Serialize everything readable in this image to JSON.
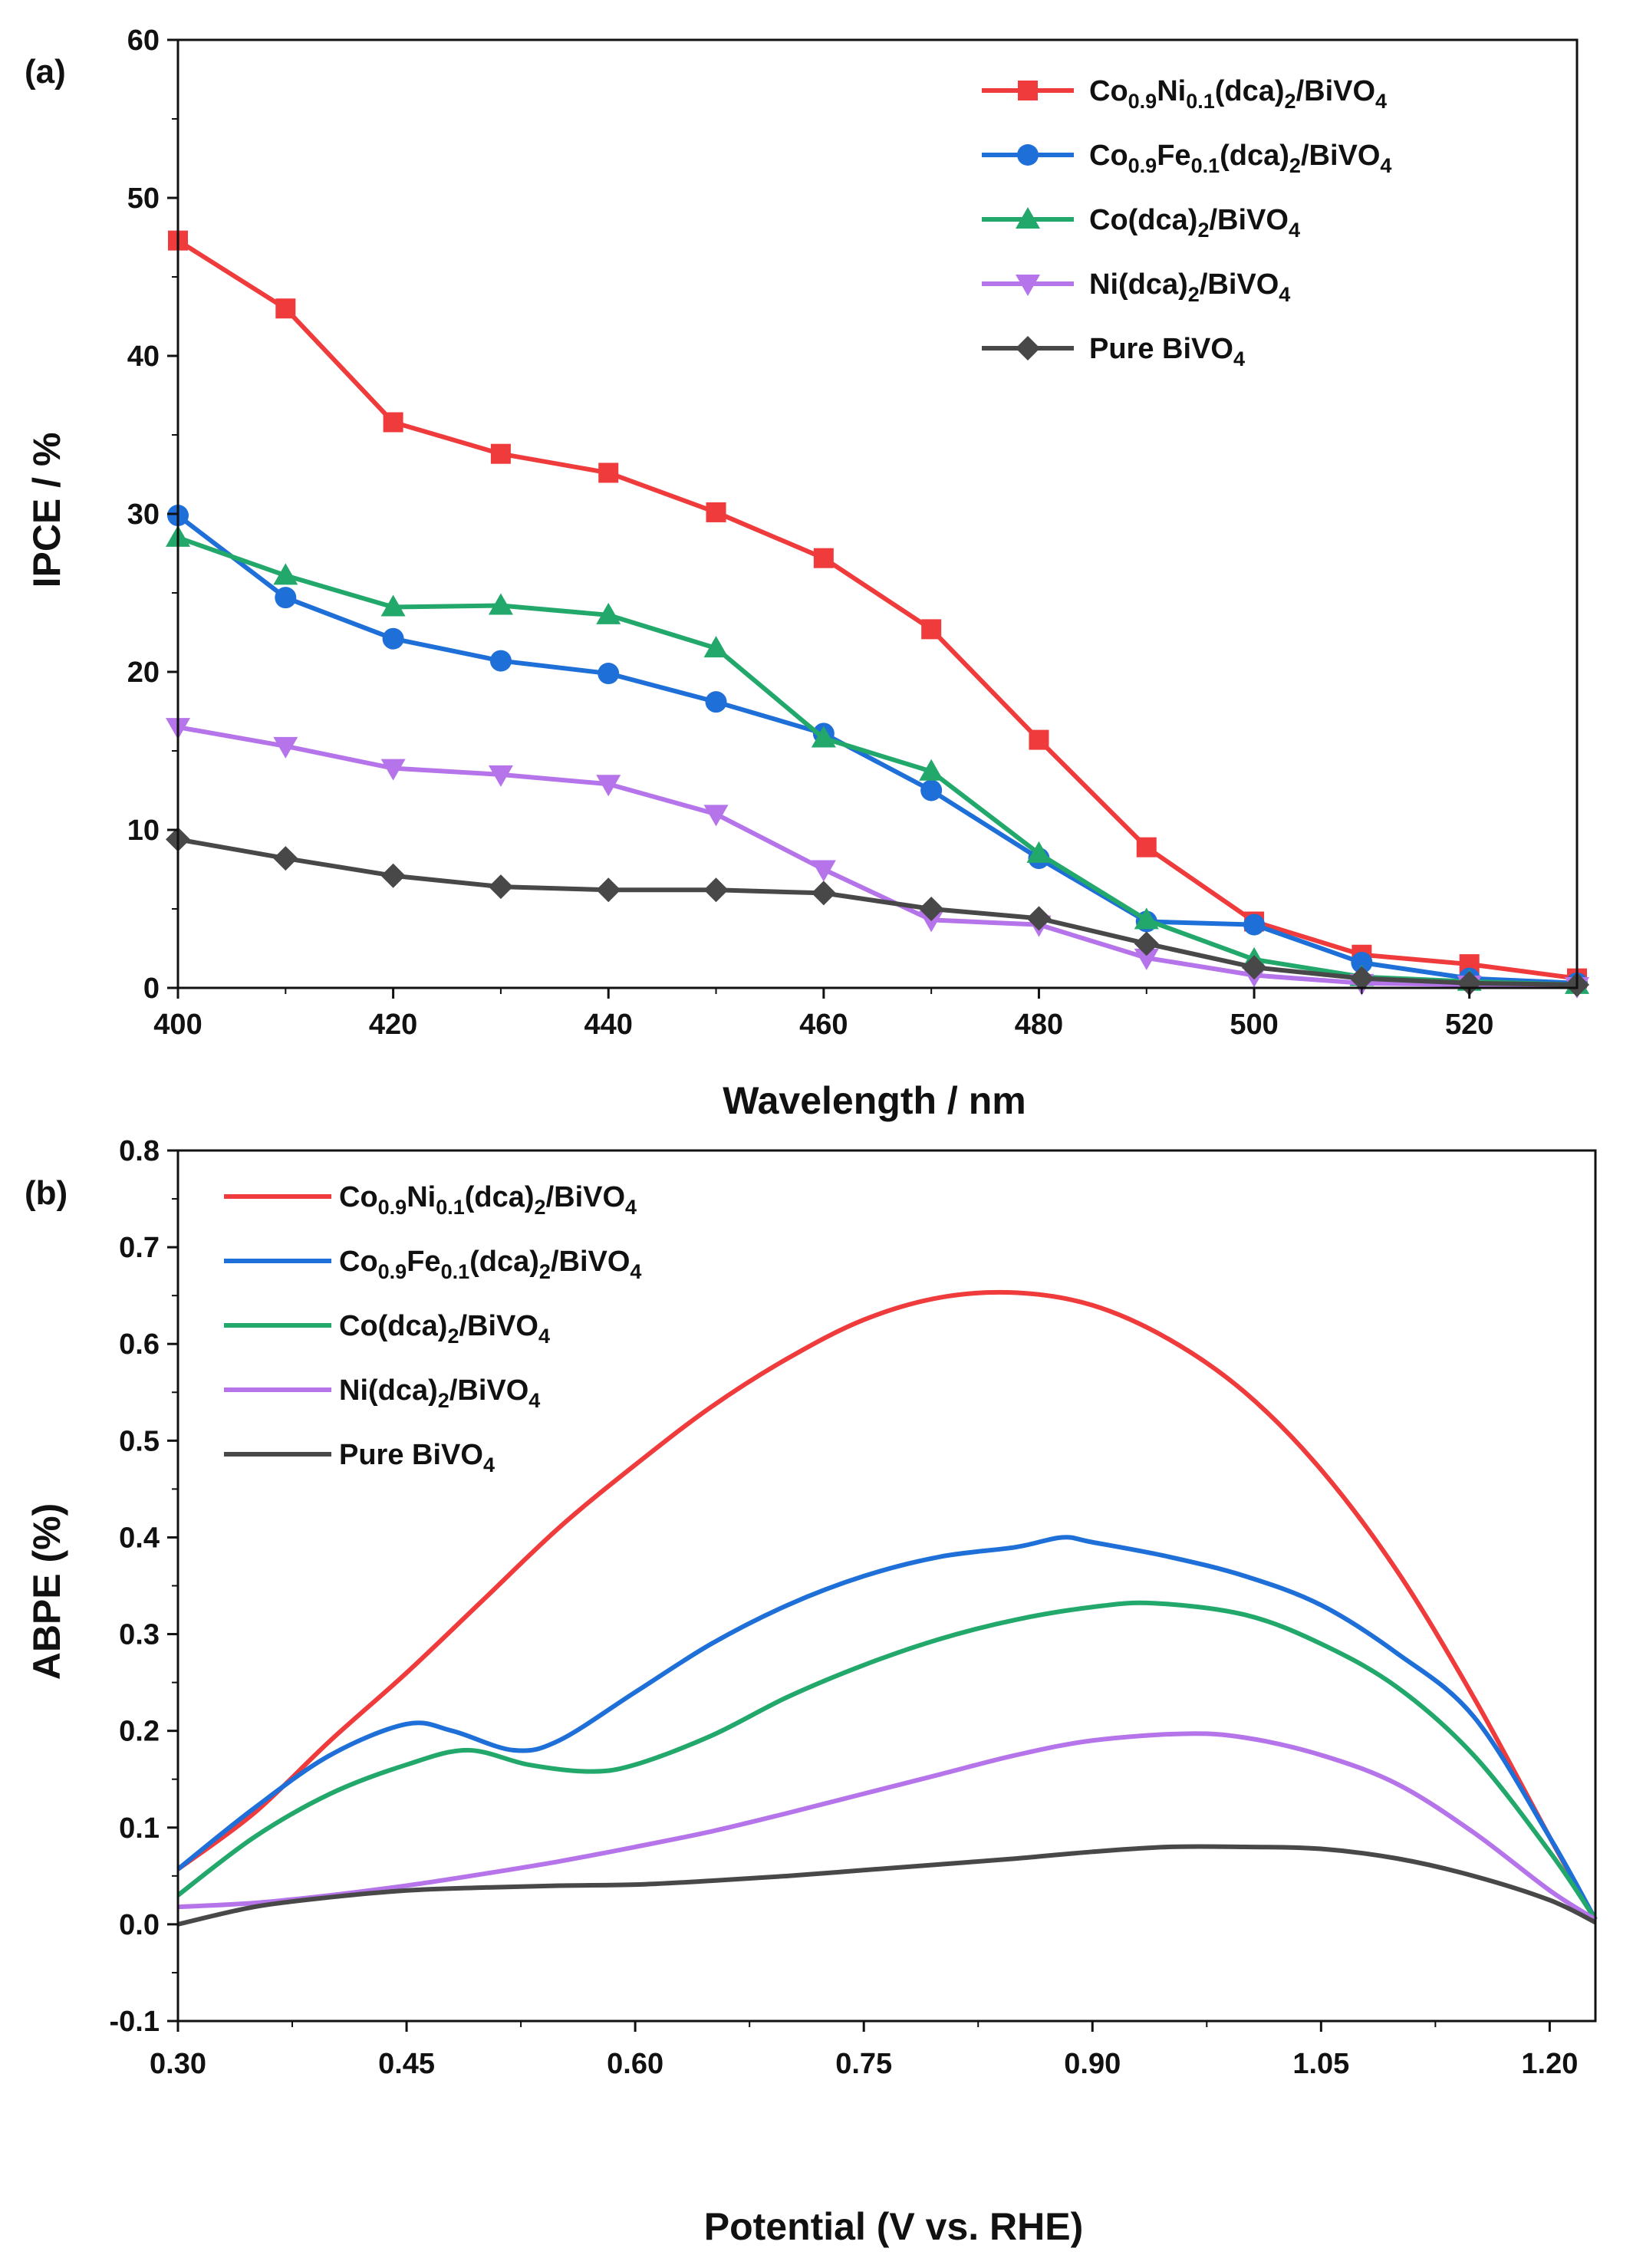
{
  "chart_data": [
    {
      "type": "line",
      "panel_label": "(a)",
      "xlabel": "Wavelength / nm",
      "ylabel": "IPCE / %",
      "xlim": [
        400,
        530
      ],
      "ylim": [
        0,
        60
      ],
      "xticks": [
        "400",
        "420",
        "440",
        "460",
        "480",
        "500",
        "520"
      ],
      "yticks": [
        "0",
        "10",
        "20",
        "30",
        "40",
        "50",
        "60"
      ],
      "legend_position": "top-right",
      "x": [
        400,
        410,
        420,
        430,
        440,
        450,
        460,
        470,
        480,
        490,
        500,
        510,
        520,
        530
      ],
      "series": [
        {
          "name": "Co0.9Ni0.1(dca)2/BiVO4",
          "legend": {
            "base": "Co",
            "sub1": "0.9",
            "mid": "Ni",
            "sub2": "0.1",
            "mid2": "(dca)",
            "sub3": "2",
            "end": "/BiVO",
            "sub4": "4"
          },
          "color": "#ef3b3b",
          "marker": "square",
          "values": [
            47.3,
            43.0,
            35.8,
            33.8,
            32.6,
            30.1,
            27.2,
            22.7,
            15.7,
            8.9,
            4.2,
            2.1,
            1.5,
            0.6
          ]
        },
        {
          "name": "Co0.9Fe0.1(dca)2/BiVO4",
          "legend": {
            "base": "Co",
            "sub1": "0.9",
            "mid": "Fe",
            "sub2": "0.1",
            "mid2": "(dca)",
            "sub3": "2",
            "end": "/BiVO",
            "sub4": "4"
          },
          "color": "#1f6fd8",
          "marker": "circle",
          "values": [
            29.9,
            24.7,
            22.1,
            20.7,
            19.9,
            18.1,
            16.1,
            12.5,
            8.2,
            4.2,
            4.0,
            1.6,
            0.6,
            0.3
          ]
        },
        {
          "name": "Co(dca)2/BiVO4",
          "legend": {
            "base": "Co(dca)",
            "sub1": "2",
            "mid": "/BiVO",
            "sub2": "4"
          },
          "color": "#23a86b",
          "marker": "triangle-up",
          "values": [
            28.5,
            26.1,
            24.1,
            24.2,
            23.6,
            21.5,
            15.8,
            13.7,
            8.5,
            4.3,
            1.8,
            0.7,
            0.4,
            0.2
          ]
        },
        {
          "name": "Ni(dca)2/BiVO4",
          "legend": {
            "base": "Ni(dca)",
            "sub1": "2",
            "mid": "/BiVO",
            "sub2": "4"
          },
          "color": "#b574ea",
          "marker": "triangle-down",
          "values": [
            16.5,
            15.3,
            13.9,
            13.5,
            12.9,
            11.0,
            7.5,
            4.3,
            4.0,
            1.9,
            0.8,
            0.3,
            0.2,
            0.1
          ]
        },
        {
          "name": "Pure BiVO4",
          "legend": {
            "base": "Pure BiVO",
            "sub1": "4"
          },
          "color": "#484848",
          "marker": "diamond",
          "values": [
            9.4,
            8.2,
            7.1,
            6.4,
            6.2,
            6.2,
            6.0,
            5.0,
            4.4,
            2.8,
            1.3,
            0.6,
            0.3,
            0.2
          ]
        }
      ]
    },
    {
      "type": "line",
      "panel_label": "(b)",
      "xlabel": "Potential (V vs. RHE)",
      "ylabel": "ABPE (%)",
      "xlim": [
        0.3,
        1.23
      ],
      "ylim": [
        -0.1,
        0.8
      ],
      "xticks": [
        "0.30",
        "0.45",
        "0.60",
        "0.75",
        "0.90",
        "1.05",
        "1.20"
      ],
      "yticks": [
        "-0.1",
        "0.0",
        "0.1",
        "0.2",
        "0.3",
        "0.4",
        "0.5",
        "0.6",
        "0.7",
        "0.8"
      ],
      "legend_position": "top-left",
      "series": [
        {
          "name": "Co0.9Ni0.1(dca)2/BiVO4",
          "legend": {
            "base": "Co",
            "sub1": "0.9",
            "mid": "Ni",
            "sub2": "0.1",
            "mid2": "(dca)",
            "sub3": "2",
            "end": "/BiVO",
            "sub4": "4"
          },
          "color": "#ef3b3b",
          "x": [
            0.3,
            0.35,
            0.4,
            0.45,
            0.5,
            0.55,
            0.6,
            0.65,
            0.7,
            0.75,
            0.8,
            0.85,
            0.9,
            0.95,
            1.0,
            1.05,
            1.1,
            1.15,
            1.2,
            1.23
          ],
          "y": [
            0.057,
            0.115,
            0.19,
            0.26,
            0.335,
            0.41,
            0.475,
            0.535,
            0.585,
            0.625,
            0.648,
            0.653,
            0.64,
            0.605,
            0.55,
            0.47,
            0.365,
            0.235,
            0.09,
            0.005
          ]
        },
        {
          "name": "Co0.9Fe0.1(dca)2/BiVO4",
          "legend": {
            "base": "Co",
            "sub1": "0.9",
            "mid": "Fe",
            "sub2": "0.1",
            "mid2": "(dca)",
            "sub3": "2",
            "end": "/BiVO",
            "sub4": "4"
          },
          "color": "#1f6fd8",
          "x": [
            0.3,
            0.35,
            0.4,
            0.45,
            0.48,
            0.52,
            0.55,
            0.6,
            0.65,
            0.7,
            0.75,
            0.8,
            0.85,
            0.88,
            0.9,
            0.95,
            1.0,
            1.05,
            1.1,
            1.15,
            1.2,
            1.23
          ],
          "y": [
            0.057,
            0.12,
            0.175,
            0.207,
            0.2,
            0.18,
            0.19,
            0.24,
            0.29,
            0.33,
            0.36,
            0.38,
            0.39,
            0.4,
            0.395,
            0.38,
            0.36,
            0.33,
            0.28,
            0.215,
            0.09,
            0.005
          ]
        },
        {
          "name": "Co(dca)2/BiVO4",
          "legend": {
            "base": "Co(dca)",
            "sub1": "2",
            "mid": "/BiVO",
            "sub2": "4"
          },
          "color": "#23a86b",
          "x": [
            0.3,
            0.35,
            0.4,
            0.45,
            0.49,
            0.53,
            0.57,
            0.6,
            0.65,
            0.7,
            0.75,
            0.8,
            0.85,
            0.9,
            0.94,
            1.0,
            1.05,
            1.1,
            1.15,
            1.2,
            1.23
          ],
          "y": [
            0.03,
            0.09,
            0.135,
            0.165,
            0.18,
            0.165,
            0.158,
            0.165,
            0.195,
            0.235,
            0.268,
            0.295,
            0.315,
            0.328,
            0.332,
            0.32,
            0.29,
            0.245,
            0.175,
            0.075,
            0.005
          ]
        },
        {
          "name": "Ni(dca)2/BiVO4",
          "legend": {
            "base": "Ni(dca)",
            "sub1": "2",
            "mid": "/BiVO",
            "sub2": "4"
          },
          "color": "#b574ea",
          "x": [
            0.3,
            0.35,
            0.4,
            0.45,
            0.5,
            0.55,
            0.6,
            0.65,
            0.7,
            0.75,
            0.8,
            0.85,
            0.9,
            0.96,
            1.0,
            1.05,
            1.1,
            1.15,
            1.2,
            1.23
          ],
          "y": [
            0.018,
            0.022,
            0.03,
            0.04,
            0.052,
            0.065,
            0.08,
            0.096,
            0.115,
            0.135,
            0.155,
            0.175,
            0.19,
            0.197,
            0.193,
            0.175,
            0.145,
            0.095,
            0.035,
            0.005
          ]
        },
        {
          "name": "Pure BiVO4",
          "legend": {
            "base": "Pure BiVO",
            "sub1": "4"
          },
          "color": "#484848",
          "x": [
            0.3,
            0.35,
            0.4,
            0.45,
            0.5,
            0.55,
            0.6,
            0.65,
            0.7,
            0.75,
            0.8,
            0.85,
            0.9,
            0.95,
            1.0,
            1.05,
            1.1,
            1.15,
            1.2,
            1.23
          ],
          "y": [
            0.0,
            0.018,
            0.028,
            0.035,
            0.038,
            0.04,
            0.041,
            0.045,
            0.05,
            0.056,
            0.062,
            0.068,
            0.075,
            0.08,
            0.08,
            0.078,
            0.068,
            0.05,
            0.025,
            0.002
          ]
        }
      ]
    }
  ]
}
